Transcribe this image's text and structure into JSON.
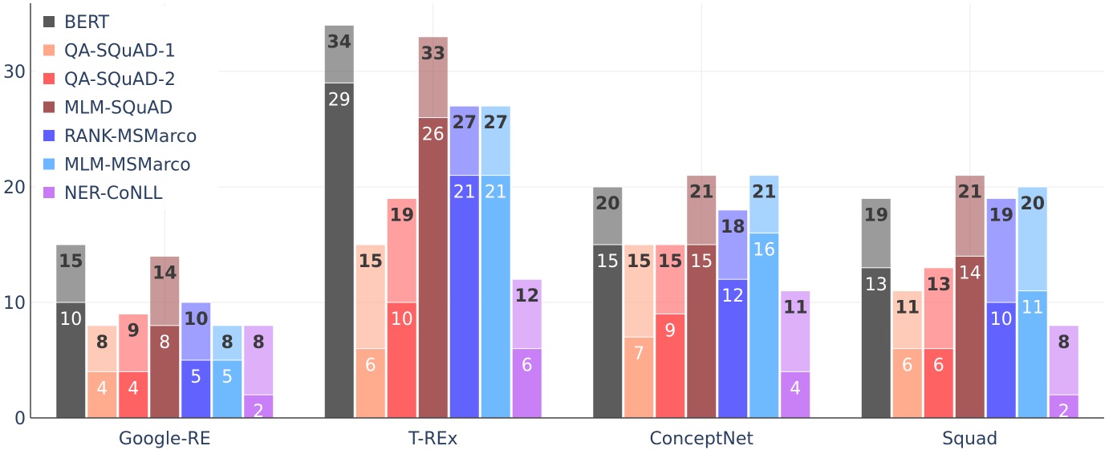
{
  "chart_data": {
    "type": "bar",
    "barmode": "overlay",
    "categories": [
      "Google-RE",
      "T-REx",
      "ConceptNet",
      "Squad"
    ],
    "ylim": [
      0,
      35
    ],
    "yticks": [
      0,
      10,
      20,
      30
    ],
    "grid": true,
    "legend_position": "top-left",
    "series": [
      {
        "name": "BERT",
        "color": "#595959",
        "inner": [
          10,
          29,
          15,
          13
        ],
        "outer": [
          15,
          34,
          20,
          19
        ],
        "inner_labels": [
          "10",
          "29",
          "15",
          "13"
        ],
        "outer_labels": [
          "15",
          "34",
          "20",
          "19"
        ]
      },
      {
        "name": "QA-SQuAD-1",
        "color": "#ffa98a",
        "inner": [
          4,
          6,
          7,
          6
        ],
        "outer": [
          8,
          15,
          15,
          11
        ],
        "inner_labels": [
          "4",
          "6",
          "7",
          "6"
        ],
        "outer_labels": [
          "8",
          "15",
          "15",
          "11"
        ]
      },
      {
        "name": "QA-SQuAD-2",
        "color": "#ff5f5f",
        "inner": [
          4,
          10,
          9,
          6
        ],
        "outer": [
          9,
          19,
          15,
          13
        ],
        "inner_labels": [
          "4",
          "10",
          "9",
          "6"
        ],
        "outer_labels": [
          "9",
          "19",
          "15",
          "13"
        ]
      },
      {
        "name": "MLM-SQuAD",
        "color": "#a55555",
        "inner": [
          8,
          26,
          15,
          14
        ],
        "outer": [
          14,
          33,
          21,
          21
        ],
        "inner_labels": [
          "8",
          "26",
          "15",
          "14"
        ],
        "outer_labels": [
          "14",
          "33",
          "21",
          "21"
        ]
      },
      {
        "name": "RANK-MSMarco",
        "color": "#5f5fff",
        "inner": [
          5,
          21,
          12,
          10
        ],
        "outer": [
          10,
          27,
          18,
          19
        ],
        "inner_labels": [
          "5",
          "21",
          "12",
          "10"
        ],
        "outer_labels": [
          "10",
          "27",
          "18",
          "19"
        ]
      },
      {
        "name": "MLM-MSMarco",
        "color": "#6cb7ff",
        "inner": [
          5,
          21,
          16,
          11
        ],
        "outer": [
          8,
          27,
          21,
          20
        ],
        "inner_labels": [
          "5",
          "21",
          "16",
          "11"
        ],
        "outer_labels": [
          "8",
          "27",
          "21",
          "20"
        ]
      },
      {
        "name": "NER-CoNLL",
        "color": "#c77cf5",
        "inner": [
          2,
          6,
          4,
          2
        ],
        "outer": [
          8,
          12,
          11,
          8
        ],
        "inner_labels": [
          "2",
          "6",
          "4",
          "2"
        ],
        "outer_labels": [
          "8",
          "12",
          "11",
          "8"
        ]
      }
    ]
  }
}
